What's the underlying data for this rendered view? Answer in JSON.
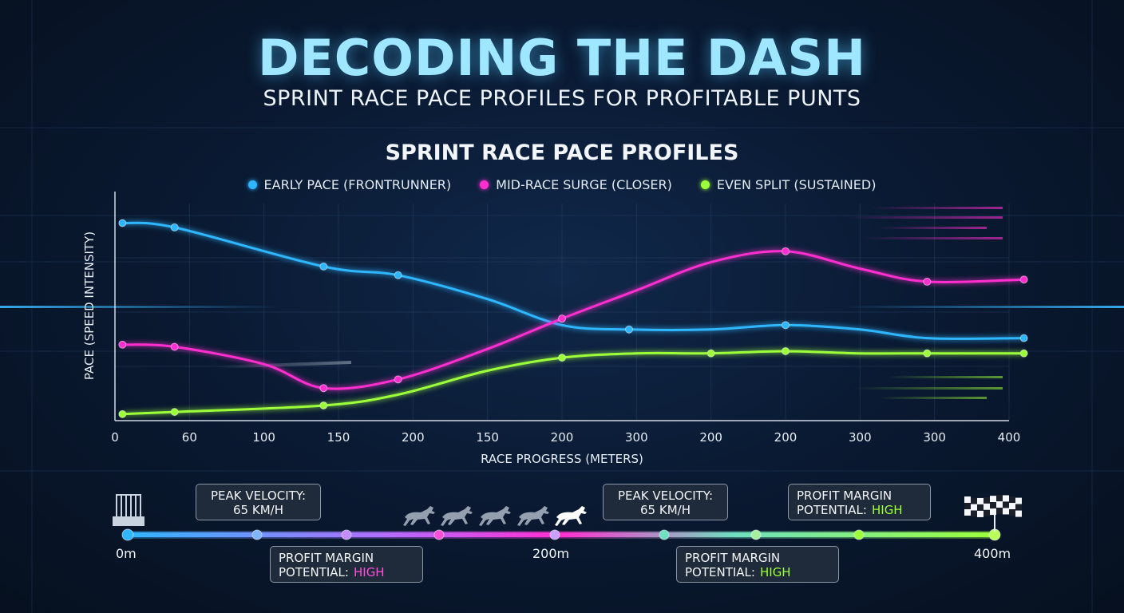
{
  "header": {
    "title": "DECODING THE DASH",
    "subtitle": "SPRINT RACE PACE PROFILES FOR PROFITABLE PUNTS"
  },
  "chart_data": {
    "type": "line",
    "title": "SPRINT RACE PACE PROFILES",
    "xlabel": "RACE PROGRESS (METERS)",
    "ylabel": "PACE (SPEED INTENSITY)",
    "x_tick_labels": [
      "0",
      "60",
      "100",
      "150",
      "200",
      "150",
      "200",
      "300",
      "200",
      "200",
      "300",
      "300",
      "400"
    ],
    "ylim": [
      0,
      100
    ],
    "grid": true,
    "legend_position": "top-center",
    "series": [
      {
        "name": "EARLY PACE (FRONTRUNNER)",
        "color": "#2fb6ff",
        "points": [
          [
            0.1,
            91
          ],
          [
            0.8,
            89
          ],
          [
            2.8,
            71
          ],
          [
            3.8,
            67
          ],
          [
            5.0,
            56
          ],
          [
            6.0,
            44
          ],
          [
            6.9,
            42
          ],
          [
            8.0,
            42
          ],
          [
            9.0,
            44
          ],
          [
            10.0,
            42
          ],
          [
            10.9,
            38
          ],
          [
            12.2,
            38
          ]
        ],
        "markers": [
          [
            0.1,
            91
          ],
          [
            0.8,
            89
          ],
          [
            2.8,
            71
          ],
          [
            3.8,
            67
          ],
          [
            6.9,
            42
          ],
          [
            9.0,
            44
          ],
          [
            12.2,
            38
          ]
        ]
      },
      {
        "name": "MID-RACE SURGE (CLOSER)",
        "color": "#ff2fcf",
        "points": [
          [
            0.1,
            35
          ],
          [
            0.8,
            34
          ],
          [
            2.0,
            26
          ],
          [
            2.8,
            15
          ],
          [
            3.8,
            19
          ],
          [
            5.0,
            33
          ],
          [
            6.0,
            47
          ],
          [
            7.0,
            60
          ],
          [
            8.0,
            73
          ],
          [
            9.0,
            78
          ],
          [
            10.0,
            70
          ],
          [
            10.9,
            64
          ],
          [
            12.2,
            65
          ]
        ],
        "markers": [
          [
            0.1,
            35
          ],
          [
            0.8,
            34
          ],
          [
            2.8,
            15
          ],
          [
            3.8,
            19
          ],
          [
            6.0,
            47
          ],
          [
            9.0,
            78
          ],
          [
            10.9,
            64
          ],
          [
            12.2,
            65
          ]
        ]
      },
      {
        "name": "EVEN SPLIT (SUSTAINED)",
        "color": "#9dff3a",
        "points": [
          [
            0.1,
            3
          ],
          [
            0.8,
            4
          ],
          [
            2.8,
            7
          ],
          [
            3.8,
            12
          ],
          [
            5.0,
            23
          ],
          [
            6.0,
            29
          ],
          [
            7.0,
            31
          ],
          [
            8.0,
            31
          ],
          [
            9.0,
            32
          ],
          [
            10.0,
            31
          ],
          [
            10.9,
            31
          ],
          [
            12.2,
            31
          ]
        ],
        "markers": [
          [
            0.1,
            3
          ],
          [
            0.8,
            4
          ],
          [
            2.8,
            7
          ],
          [
            6.0,
            29
          ],
          [
            8.0,
            31
          ],
          [
            9.0,
            32
          ],
          [
            10.9,
            31
          ],
          [
            12.2,
            31
          ]
        ]
      }
    ]
  },
  "timeline": {
    "start_label": "0m",
    "mid_label": "200m",
    "end_label": "400m",
    "callouts": [
      {
        "line1": "PEAK VELOCITY:",
        "line2": "65 KM/H"
      },
      {
        "line1": "PROFIT MARGIN",
        "line2": "POTENTIAL:",
        "highlight": "HIGH",
        "highlight_color": "#ff4fd8"
      },
      {
        "line1": "PEAK VELOCITY:",
        "line2": "65 KM/H"
      },
      {
        "line1": "PROFIT MARGIN",
        "line2": "POTENTIAL:",
        "highlight": "HIGH",
        "highlight_color": "#9dff3a"
      },
      {
        "line1": "PROFIT MARGIN",
        "line2": "POTENTIAL:",
        "highlight": "HIGH",
        "highlight_color": "#9dff3a"
      }
    ],
    "icons": [
      "starting-gate-icon",
      "horse-icon",
      "checkered-flag-icon"
    ],
    "track_gradient": [
      "#2fb6ff",
      "#b46cff",
      "#ff2fcf",
      "#6fe0c0",
      "#9dff3a"
    ]
  }
}
